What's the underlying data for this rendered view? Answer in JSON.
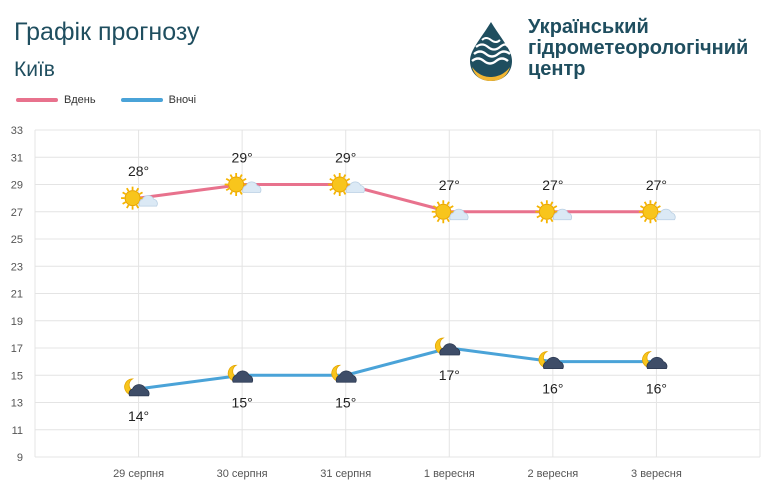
{
  "header": {
    "title": "Графік прогнозу",
    "city": "Київ"
  },
  "organization": {
    "name_lines": [
      "Український",
      "гідрометеорологічний",
      "центр"
    ],
    "logo_icon": "ukrhydromet-logo-icon",
    "colors": {
      "navy": "#1f4e5f",
      "gold": "#f2b632"
    }
  },
  "chart_data": {
    "type": "line",
    "categories": [
      "29 серпня",
      "30 серпня",
      "31 серпня",
      "1 вересня",
      "2 вересня",
      "3 вересня"
    ],
    "series": [
      {
        "name": "Вдень",
        "values": [
          28,
          29,
          29,
          27,
          27,
          27
        ],
        "color": "#e8728d",
        "labels": [
          "28°",
          "29°",
          "29°",
          "27°",
          "27°",
          "27°"
        ],
        "icon": "sun-cloud-icon"
      },
      {
        "name": "Вночі",
        "values": [
          14,
          15,
          15,
          17,
          16,
          16
        ],
        "color": "#4aa3d8",
        "labels": [
          "14°",
          "15°",
          "15°",
          "17°",
          "16°",
          "16°"
        ],
        "icon": "moon-cloud-icon"
      }
    ],
    "yticks": [
      9,
      11,
      13,
      15,
      17,
      19,
      21,
      23,
      25,
      27,
      29,
      31,
      33
    ],
    "ylim": [
      9,
      33
    ],
    "grid": true,
    "legend_position": "top-left"
  }
}
